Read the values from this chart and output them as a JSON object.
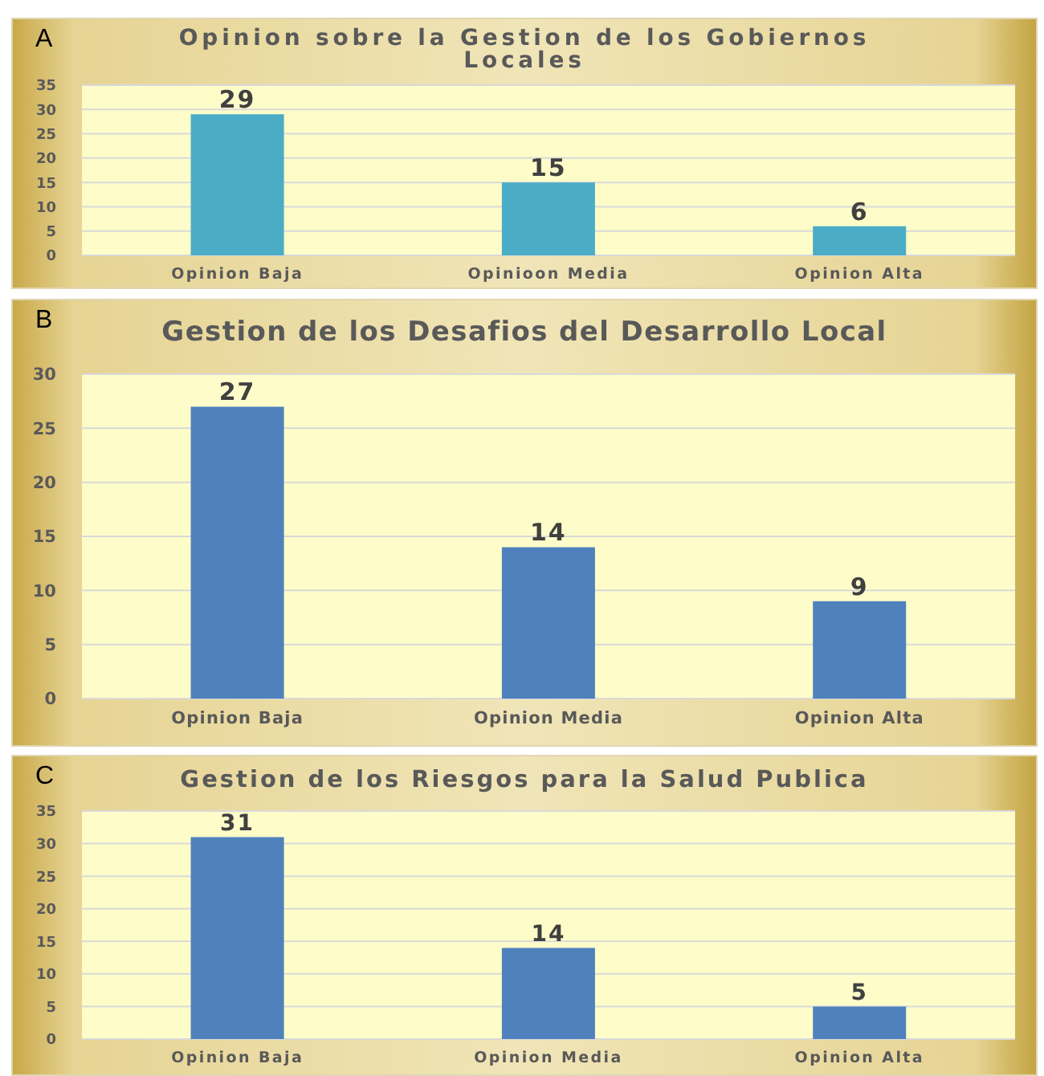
{
  "chart_data": [
    {
      "type": "bar",
      "title": "Opinion sobre la Gestion de los Gobiernos Locales",
      "categories": [
        "Opinion Baja",
        "Opinioon Media",
        "Opinion Alta"
      ],
      "values": [
        29,
        15,
        6
      ],
      "color": "#4bacc6",
      "ylim": [
        0,
        35
      ],
      "yticks": [
        0,
        5,
        10,
        15,
        20,
        25,
        30,
        35
      ],
      "grid": "y",
      "data_labels": true,
      "annotations": [
        "A"
      ]
    },
    {
      "type": "bar",
      "title": "Gestion de los Desafios del Desarrollo Local",
      "categories": [
        "Opinion Baja",
        "Opinion Media",
        "Opinion Alta"
      ],
      "values": [
        27,
        14,
        9
      ],
      "color": "#4f81bd",
      "ylim": [
        0,
        30
      ],
      "yticks": [
        0,
        5,
        10,
        15,
        20,
        25,
        30
      ],
      "grid": "y",
      "data_labels": true,
      "annotations": [
        "B"
      ]
    },
    {
      "type": "bar",
      "title": "Gestion de los Riesgos para la Salud Publica",
      "categories": [
        "Opinion Baja",
        "Opinion Media",
        "Opinion Alta"
      ],
      "values": [
        31,
        14,
        5
      ],
      "color": "#4f81bd",
      "ylim": [
        0,
        35
      ],
      "yticks": [
        0,
        5,
        10,
        15,
        20,
        25,
        30,
        35
      ],
      "grid": "y",
      "data_labels": true,
      "annotations": [
        "C"
      ]
    }
  ]
}
